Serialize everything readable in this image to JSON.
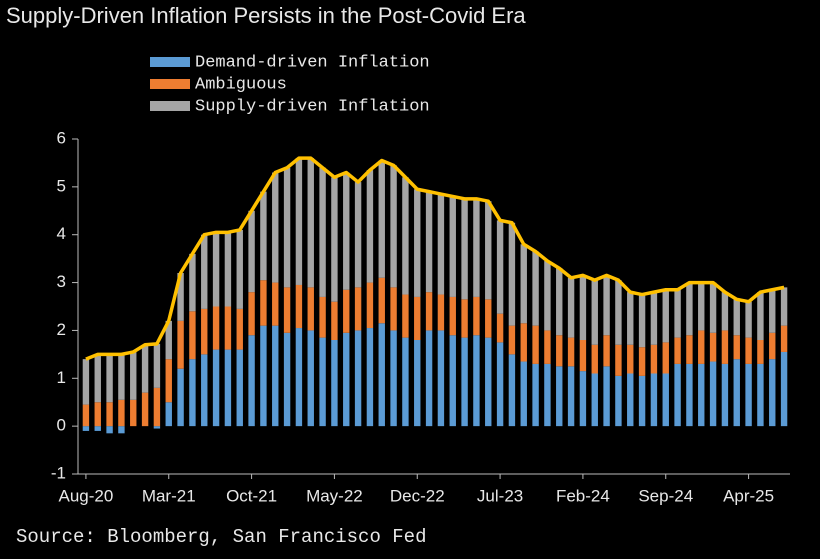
{
  "chart_data": {
    "type": "bar",
    "title": "Supply-Driven Inflation Persists in the Post-Covid Era",
    "source": "Source: Bloomberg, San Francisco Fed",
    "categories": [
      "Aug-20",
      null,
      null,
      null,
      null,
      null,
      null,
      "Mar-21",
      null,
      null,
      null,
      null,
      null,
      null,
      "Oct-21",
      null,
      null,
      null,
      null,
      null,
      null,
      "May-22",
      null,
      null,
      null,
      null,
      null,
      null,
      "Dec-22",
      null,
      null,
      null,
      null,
      null,
      null,
      "Jul-23",
      null,
      null,
      null,
      null,
      null,
      null,
      "Feb-24",
      null,
      null,
      null,
      null,
      null,
      null,
      "Sep-24",
      null,
      null,
      null,
      null,
      null,
      null,
      "Apr-25",
      null,
      null,
      null
    ],
    "series": [
      {
        "name": "Demand-driven Inflation",
        "color": "#5b9bd5",
        "values": [
          -0.1,
          -0.1,
          -0.15,
          -0.15,
          0,
          0,
          -0.05,
          0.5,
          1.2,
          1.4,
          1.5,
          1.6,
          1.6,
          1.6,
          1.9,
          2.1,
          2.1,
          1.95,
          2.05,
          2.0,
          1.85,
          1.8,
          1.95,
          2.0,
          2.05,
          2.15,
          2.0,
          1.85,
          1.8,
          2.0,
          2.0,
          1.9,
          1.85,
          1.9,
          1.85,
          1.75,
          1.5,
          1.35,
          1.3,
          1.3,
          1.25,
          1.25,
          1.15,
          1.1,
          1.25,
          1.05,
          1.1,
          1.05,
          1.1,
          1.1,
          1.3,
          1.3,
          1.3,
          1.35,
          1.3,
          1.4,
          1.3,
          1.3,
          1.4,
          1.55
        ]
      },
      {
        "name": "Ambiguous",
        "color": "#ed7d31",
        "values": [
          0.45,
          0.5,
          0.5,
          0.55,
          0.55,
          0.7,
          0.8,
          0.9,
          1.0,
          1.0,
          0.95,
          0.9,
          0.9,
          0.85,
          0.9,
          0.95,
          0.9,
          0.95,
          0.9,
          0.9,
          0.85,
          0.8,
          0.9,
          0.9,
          0.95,
          0.95,
          0.9,
          0.9,
          0.9,
          0.8,
          0.75,
          0.8,
          0.8,
          0.8,
          0.8,
          0.6,
          0.6,
          0.8,
          0.8,
          0.7,
          0.65,
          0.6,
          0.65,
          0.6,
          0.65,
          0.65,
          0.6,
          0.6,
          0.6,
          0.65,
          0.55,
          0.6,
          0.7,
          0.6,
          0.7,
          0.5,
          0.55,
          0.5,
          0.55,
          0.55
        ]
      },
      {
        "name": "Supply-driven Inflation",
        "color": "#a5a5a5",
        "values": [
          0.95,
          1.0,
          1.0,
          0.95,
          1.0,
          1.0,
          0.92,
          0.8,
          1.0,
          1.2,
          1.55,
          1.55,
          1.55,
          1.65,
          1.7,
          1.85,
          2.3,
          2.5,
          2.65,
          2.7,
          2.7,
          2.6,
          2.45,
          2.2,
          2.35,
          2.45,
          2.55,
          2.45,
          2.25,
          2.1,
          2.1,
          2.1,
          2.1,
          2.05,
          2.05,
          1.95,
          2.15,
          1.65,
          1.55,
          1.45,
          1.4,
          1.25,
          1.35,
          1.35,
          1.25,
          1.35,
          1.1,
          1.1,
          1.1,
          1.1,
          1.0,
          1.1,
          1.0,
          1.05,
          0.8,
          0.75,
          0.75,
          1.0,
          0.9,
          0.8
        ]
      }
    ],
    "line": {
      "color": "#ffc000",
      "values": [
        1.4,
        1.5,
        1.5,
        1.5,
        1.55,
        1.7,
        1.72,
        2.2,
        3.2,
        3.6,
        4.0,
        4.05,
        4.05,
        4.1,
        4.5,
        4.9,
        5.3,
        5.4,
        5.6,
        5.6,
        5.4,
        5.2,
        5.3,
        5.1,
        5.35,
        5.55,
        5.45,
        5.2,
        4.95,
        4.9,
        4.85,
        4.8,
        4.75,
        4.75,
        4.7,
        4.3,
        4.25,
        3.8,
        3.65,
        3.45,
        3.3,
        3.1,
        3.15,
        3.05,
        3.15,
        3.05,
        2.8,
        2.75,
        2.8,
        2.85,
        2.85,
        3.0,
        3.0,
        3.0,
        2.8,
        2.65,
        2.6,
        2.8,
        2.85,
        2.9
      ]
    },
    "ylim": [
      -1,
      6
    ],
    "yticks": [
      -1,
      0,
      1,
      2,
      3,
      4,
      5,
      6
    ],
    "stacked": true
  }
}
